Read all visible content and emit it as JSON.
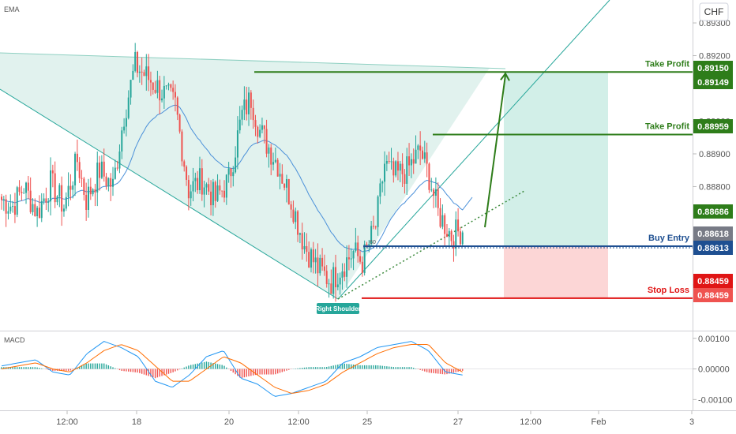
{
  "indicators": {
    "main": "EMA",
    "lower": "MACD"
  },
  "currency": "CHF",
  "colors": {
    "bull": "#26a69a",
    "bear": "#ef5350",
    "wedge": "#c8e8e0",
    "green": "#2e7d1a",
    "blue": "#1e4f91",
    "red": "#e01515",
    "gray": "#787b86",
    "ema": "#4a90d9",
    "macd": "#2196f3",
    "signal": "#ff6d00",
    "tp_zone": "#d2efe8",
    "sl_zone": "#fcd6d6"
  },
  "chart_data": [
    {
      "type": "candlestick",
      "title": "",
      "x_ticks": [
        "12:00",
        "18",
        "20",
        "12:00",
        "25",
        "27",
        "12:00",
        "Feb",
        "3"
      ],
      "y_ticks": [
        "0.89300",
        "0.89200",
        "0.89000",
        "0.88900",
        "0.88800",
        "0.88500"
      ],
      "y_tick_values": [
        0.893,
        0.892,
        0.89,
        0.889,
        0.888,
        0.885
      ],
      "ylim": [
        0.8836,
        0.8937
      ],
      "price_path": [
        {
          "bar": 0,
          "price": 0.8876
        },
        {
          "bar": 5,
          "price": 0.8874
        },
        {
          "bar": 10,
          "price": 0.888
        },
        {
          "bar": 16,
          "price": 0.8872
        },
        {
          "bar": 22,
          "price": 0.8881
        },
        {
          "bar": 28,
          "price": 0.8874
        },
        {
          "bar": 34,
          "price": 0.8888
        },
        {
          "bar": 38,
          "price": 0.8876
        },
        {
          "bar": 44,
          "price": 0.8885
        },
        {
          "bar": 50,
          "price": 0.888
        },
        {
          "bar": 55,
          "price": 0.8902
        },
        {
          "bar": 60,
          "price": 0.8917
        },
        {
          "bar": 66,
          "price": 0.8913
        },
        {
          "bar": 72,
          "price": 0.8909
        },
        {
          "bar": 78,
          "price": 0.8905
        },
        {
          "bar": 84,
          "price": 0.8879
        },
        {
          "bar": 90,
          "price": 0.8882
        },
        {
          "bar": 96,
          "price": 0.8876
        },
        {
          "bar": 102,
          "price": 0.8882
        },
        {
          "bar": 108,
          "price": 0.8902
        },
        {
          "bar": 112,
          "price": 0.8907
        },
        {
          "bar": 116,
          "price": 0.8897
        },
        {
          "bar": 124,
          "price": 0.8887
        },
        {
          "bar": 130,
          "price": 0.8876
        },
        {
          "bar": 136,
          "price": 0.8862
        },
        {
          "bar": 142,
          "price": 0.8855
        },
        {
          "bar": 148,
          "price": 0.8851
        },
        {
          "bar": 152,
          "price": 0.8855
        },
        {
          "bar": 158,
          "price": 0.886
        },
        {
          "bar": 162,
          "price": 0.8857
        },
        {
          "bar": 168,
          "price": 0.8868
        },
        {
          "bar": 172,
          "price": 0.8887
        },
        {
          "bar": 176,
          "price": 0.8883
        },
        {
          "bar": 182,
          "price": 0.8885
        },
        {
          "bar": 188,
          "price": 0.8891
        },
        {
          "bar": 192,
          "price": 0.8883
        },
        {
          "bar": 196,
          "price": 0.8872
        },
        {
          "bar": 202,
          "price": 0.8865
        },
        {
          "bar": 207,
          "price": 0.8867
        }
      ],
      "levels": [
        {
          "label": "Take Profit",
          "value": 0.8915
        },
        {
          "label": "Take Profit",
          "value": 0.88959
        },
        {
          "label": "Buy Entry",
          "value": 0.88618
        },
        {
          "label": "Stop Loss",
          "value": 0.88459
        }
      ],
      "price_tags": [
        {
          "text": "0.89150",
          "value": 0.8915,
          "color": "#2e7d1a"
        },
        {
          "text": "0.89149",
          "value": 0.89149,
          "color": "#2e7d1a"
        },
        {
          "text": "0.88959",
          "value": 0.88959,
          "color": "#2e7d1a"
        },
        {
          "text": "0.88686",
          "value": 0.88686,
          "color": "#2e7d1a"
        },
        {
          "text": "0.88618",
          "value": 0.88618,
          "color": "#787b86"
        },
        {
          "text": "0.88613",
          "value": 0.88613,
          "color": "#1e4f91"
        },
        {
          "text": "0.88459",
          "value": 0.88459,
          "color": "#e01515"
        },
        {
          "text": "0.88459",
          "value": 0.88459,
          "color": "#ef5350"
        }
      ],
      "annotations": [
        "Right Shoulder",
        "60"
      ]
    },
    {
      "type": "bar+line",
      "title": "MACD",
      "y_ticks": [
        "0.00100",
        "0.00000",
        "-0.00100"
      ],
      "y_tick_values": [
        0.001,
        0.0,
        -0.001
      ],
      "ylim": [
        -0.0013,
        0.0012
      ],
      "series": [
        {
          "values": [
            0.0001,
            0.0002,
            0.0003,
            -0.0001,
            -0.0002,
            0.0005,
            0.0009,
            0.0007,
            0.0004,
            -0.0004,
            -0.0006,
            -0.0002,
            0.0004,
            0.0006,
            -0.0003,
            -0.0005,
            -0.0009,
            -0.0008,
            -0.0006,
            -0.0004,
            0.0002,
            0.0004,
            0.0007,
            0.0008,
            0.0009,
            0.0006,
            -0.0001,
            -0.0002
          ]
        },
        {
          "values": [
            0.0,
            0.0001,
            0.0002,
            0.0,
            -0.0001,
            0.0002,
            0.0006,
            0.0008,
            0.0006,
            0.0001,
            -0.0004,
            -0.0004,
            0.0,
            0.0004,
            0.0002,
            -0.0002,
            -0.0006,
            -0.0008,
            -0.0007,
            -0.0005,
            -0.0001,
            0.0002,
            0.0005,
            0.0007,
            0.0008,
            0.0008,
            0.0002,
            -0.0001
          ]
        }
      ]
    }
  ]
}
